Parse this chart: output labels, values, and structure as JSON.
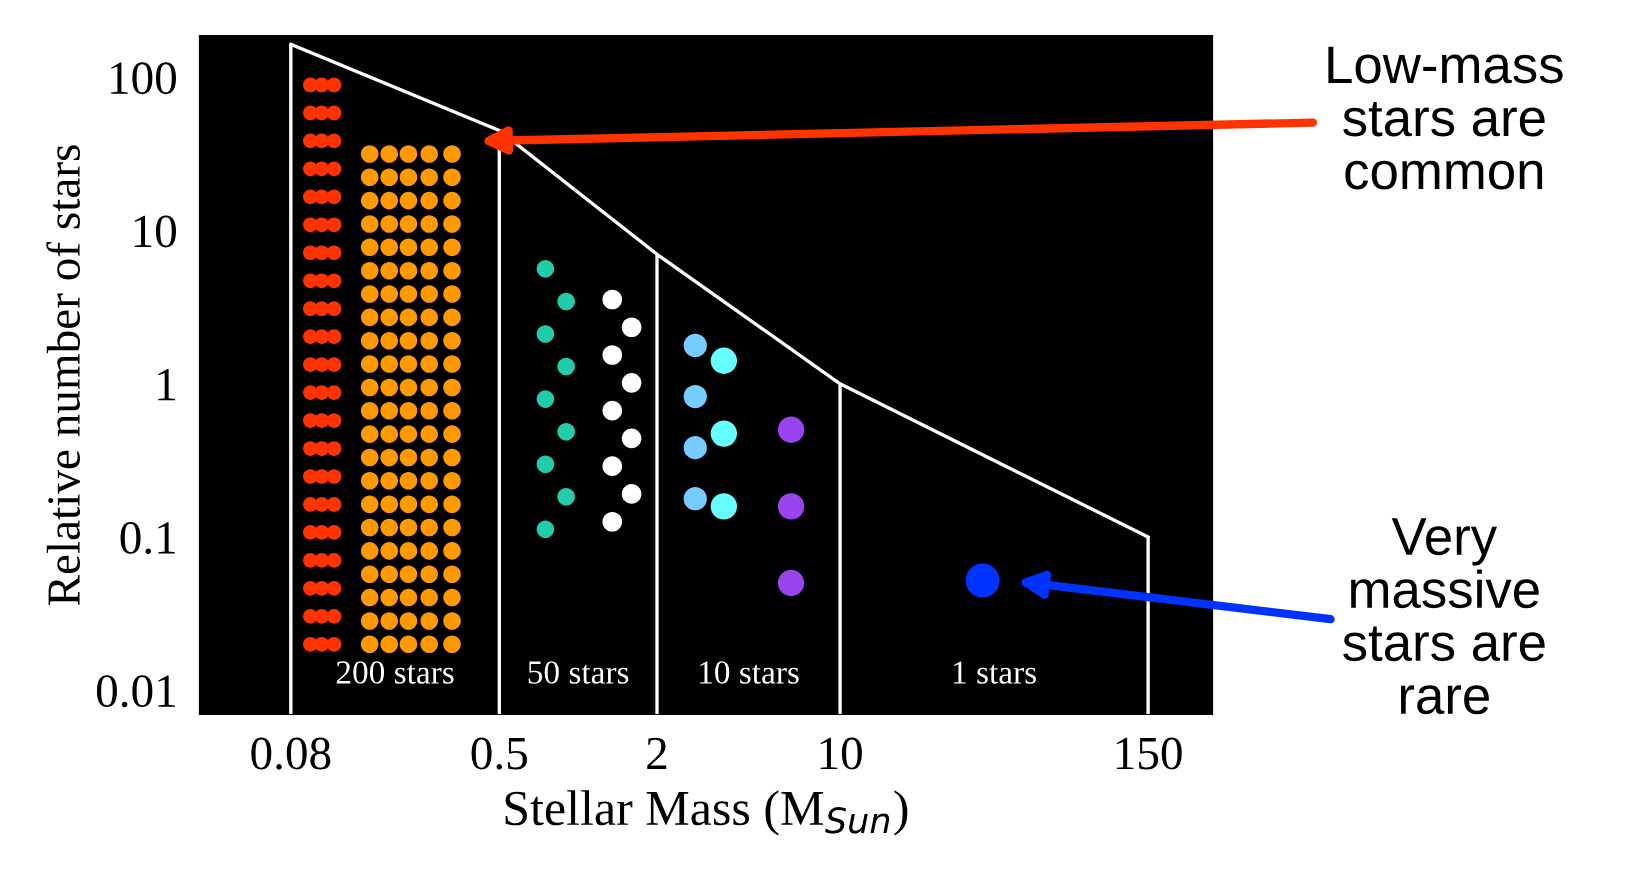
{
  "chart_data": {
    "type": "line",
    "xlabel": "Stellar Mass (M$_{Sun}$)",
    "ylabel": "Relative number of stars",
    "log": "xy",
    "grid": false,
    "series": [
      {
        "color": "#ffffff",
        "x": [
          0.08,
          0.5,
          2,
          10,
          150
        ],
        "values": [
          164,
          45,
          7,
          1,
          0.1
        ]
      }
    ],
    "ref_lines": [
      {
        "axis": "x",
        "value": 0.08,
        "color": "#ffffff"
      },
      {
        "axis": "x",
        "value": 0.5,
        "color": "#ffffff"
      },
      {
        "axis": "x",
        "value": 2,
        "color": "#ffffff"
      },
      {
        "axis": "x",
        "value": 10,
        "color": "#ffffff"
      },
      {
        "axis": "x",
        "value": 150,
        "color": "#ffffff"
      }
    ],
    "xlim": [
      0.036,
      263
    ],
    "xticks": [
      0.08,
      0.5,
      2,
      10,
      150
    ],
    "ylim": [
      0.007,
      186
    ],
    "yticks": [
      100,
      10,
      1,
      0.1,
      0.01
    ],
    "annotations": [
      "200 stars",
      "50 stars",
      "10 stars",
      "1 stars",
      "Low-mass\nstars are\ncommon",
      "Very\nmassive\nstars are\nrare"
    ]
  }
}
